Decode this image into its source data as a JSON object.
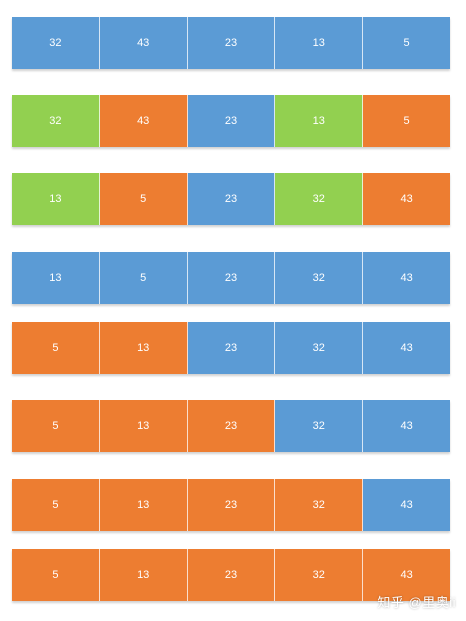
{
  "colors": {
    "blue": "#5b9bd5",
    "orange": "#ed7d31",
    "green": "#92d050"
  },
  "rows": [
    {
      "cells": [
        {
          "value": "32",
          "color": "blue"
        },
        {
          "value": "43",
          "color": "blue"
        },
        {
          "value": "23",
          "color": "blue"
        },
        {
          "value": "13",
          "color": "blue"
        },
        {
          "value": "5",
          "color": "blue"
        }
      ]
    },
    {
      "cells": [
        {
          "value": "32",
          "color": "green"
        },
        {
          "value": "43",
          "color": "orange"
        },
        {
          "value": "23",
          "color": "blue"
        },
        {
          "value": "13",
          "color": "green"
        },
        {
          "value": "5",
          "color": "orange"
        }
      ]
    },
    {
      "cells": [
        {
          "value": "13",
          "color": "green"
        },
        {
          "value": "5",
          "color": "orange"
        },
        {
          "value": "23",
          "color": "blue"
        },
        {
          "value": "32",
          "color": "green"
        },
        {
          "value": "43",
          "color": "orange"
        }
      ]
    },
    {
      "cells": [
        {
          "value": "13",
          "color": "blue"
        },
        {
          "value": "5",
          "color": "blue"
        },
        {
          "value": "23",
          "color": "blue"
        },
        {
          "value": "32",
          "color": "blue"
        },
        {
          "value": "43",
          "color": "blue"
        }
      ]
    },
    {
      "cells": [
        {
          "value": "5",
          "color": "orange"
        },
        {
          "value": "13",
          "color": "orange"
        },
        {
          "value": "23",
          "color": "blue"
        },
        {
          "value": "32",
          "color": "blue"
        },
        {
          "value": "43",
          "color": "blue"
        }
      ]
    },
    {
      "cells": [
        {
          "value": "5",
          "color": "orange"
        },
        {
          "value": "13",
          "color": "orange"
        },
        {
          "value": "23",
          "color": "orange"
        },
        {
          "value": "32",
          "color": "blue"
        },
        {
          "value": "43",
          "color": "blue"
        }
      ]
    },
    {
      "cells": [
        {
          "value": "5",
          "color": "orange"
        },
        {
          "value": "13",
          "color": "orange"
        },
        {
          "value": "23",
          "color": "orange"
        },
        {
          "value": "32",
          "color": "orange"
        },
        {
          "value": "43",
          "color": "blue"
        }
      ]
    },
    {
      "cells": [
        {
          "value": "5",
          "color": "orange"
        },
        {
          "value": "13",
          "color": "orange"
        },
        {
          "value": "23",
          "color": "orange"
        },
        {
          "value": "32",
          "color": "orange"
        },
        {
          "value": "43",
          "color": "orange"
        }
      ]
    }
  ],
  "watermark": "知乎 @里奥ii"
}
